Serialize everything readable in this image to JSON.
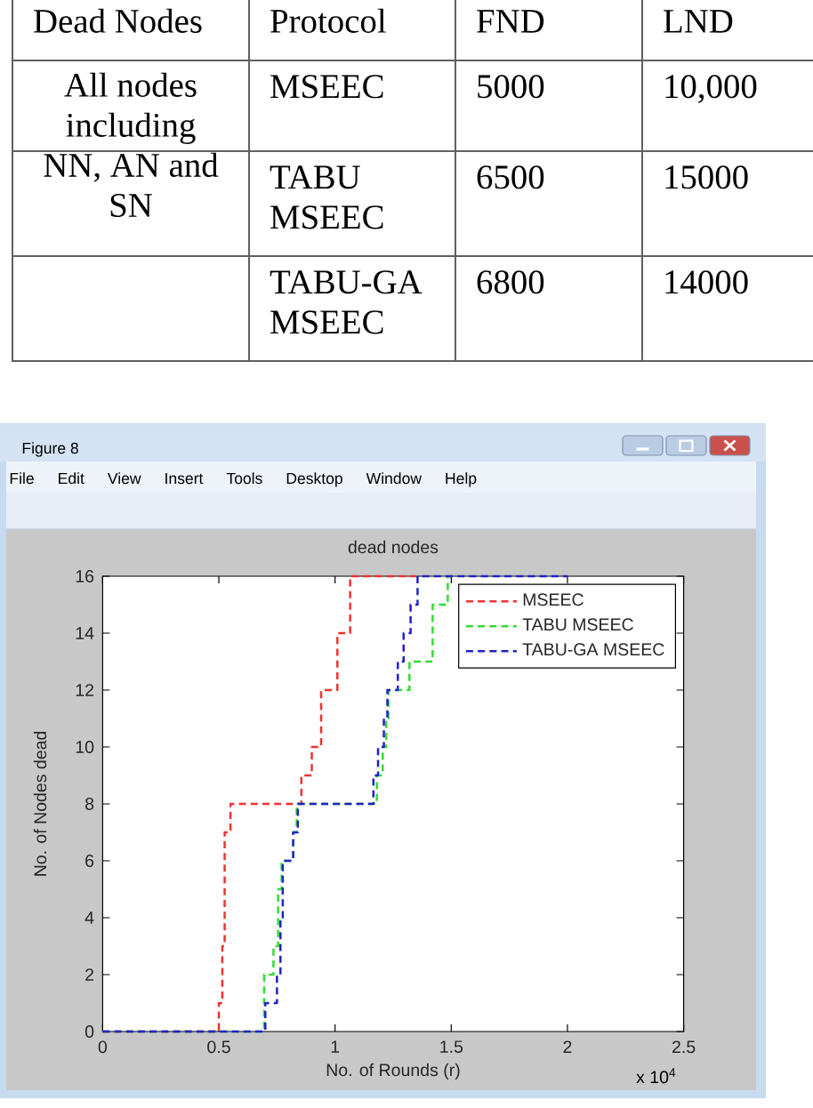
{
  "chart_data": [
    {
      "type": "other",
      "annotations": [
        "Dead Nodes",
        "Protocol",
        "FND",
        "LND",
        "All nodes including NN, AN and SN",
        "MSEEC",
        "5000",
        "10,000",
        "TABU MSEEC",
        "6500",
        "15000",
        "TABU-GA MSEEC",
        "6800",
        "14000"
      ]
    },
    {
      "type": "step",
      "title": "dead nodes",
      "xlabel": "No. of Rounds (r)",
      "ylabel": "No. of Nodes dead",
      "annotations": [
        "Figure 8",
        "File",
        "Edit",
        "View",
        "Insert",
        "Tools",
        "Desktop",
        "Window",
        "Help",
        "x 10$^{4}$"
      ],
      "xlim": [
        0,
        2.5
      ],
      "ylim": [
        0,
        16
      ],
      "xticks": [
        0,
        0.5,
        1,
        1.5,
        2,
        2.5
      ],
      "yticks": [
        0,
        2,
        4,
        6,
        8,
        10,
        12,
        14,
        16
      ],
      "legend": "top right",
      "line_style": "dashed",
      "series": [
        {
          "name": "MSEEC",
          "color": "#ee3333",
          "x": [
            0,
            0.5,
            0.515,
            0.525,
            0.55,
            0.855,
            0.9,
            0.94,
            1.01,
            1.065,
            1.35
          ],
          "values": [
            0,
            1,
            3,
            7,
            8,
            9,
            10,
            12,
            14,
            16,
            16
          ]
        },
        {
          "name": "TABU MSEEC",
          "color": "#33dd33",
          "x": [
            0,
            0.695,
            0.735,
            0.755,
            0.77,
            0.82,
            0.835,
            1.18,
            1.205,
            1.22,
            1.23,
            1.32,
            1.42,
            1.485,
            1.5
          ],
          "values": [
            0,
            2,
            3,
            5,
            6,
            7,
            8,
            9,
            10,
            11,
            12,
            13,
            15,
            16,
            16
          ]
        },
        {
          "name": "TABU-GA MSEEC",
          "color": "#2222cc",
          "x": [
            0,
            0.7,
            0.75,
            0.765,
            0.775,
            0.82,
            0.84,
            1.165,
            1.185,
            1.21,
            1.225,
            1.27,
            1.295,
            1.325,
            1.355,
            2.0
          ],
          "values": [
            0,
            1,
            2,
            4,
            6,
            7,
            8,
            9,
            10,
            11,
            12,
            13,
            14,
            15,
            16,
            16
          ]
        }
      ]
    }
  ]
}
